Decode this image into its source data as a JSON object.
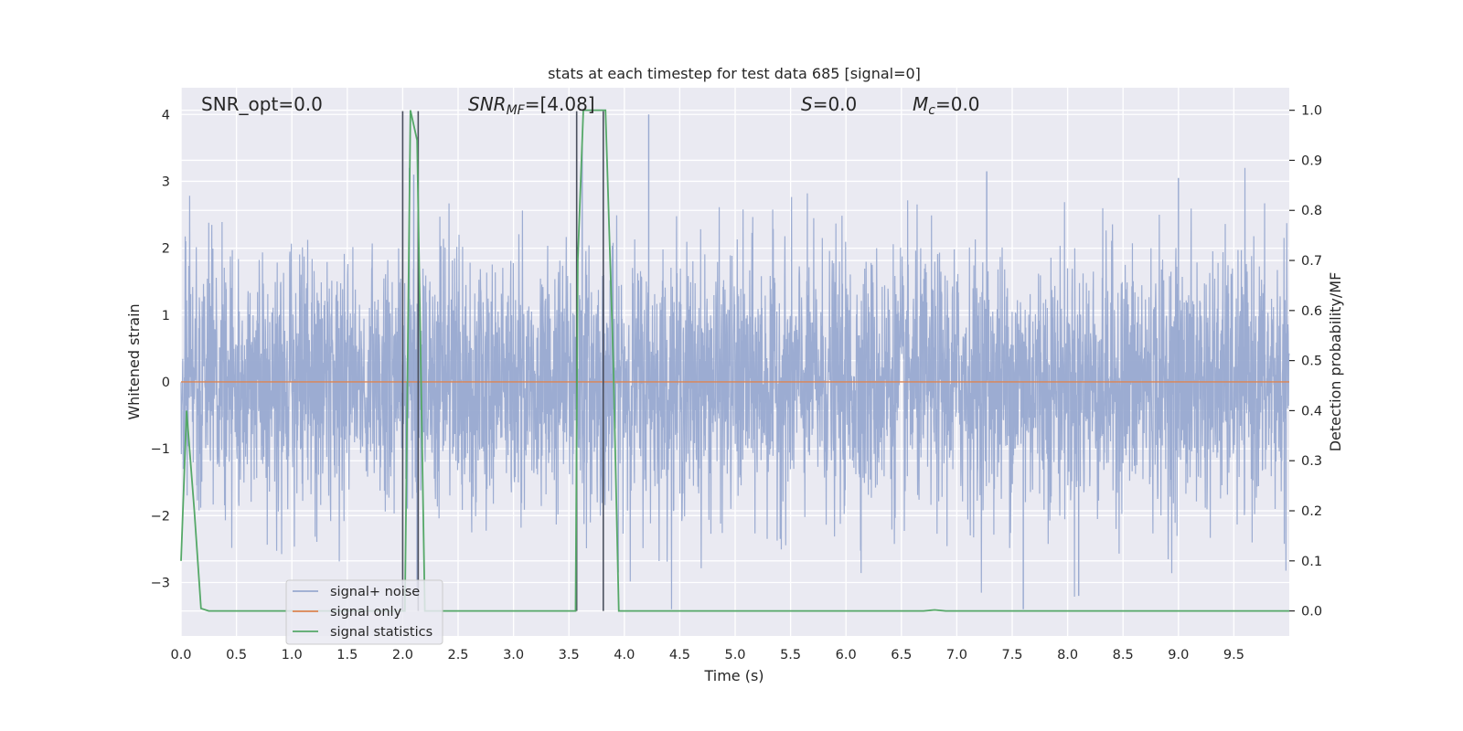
{
  "chart_data": {
    "type": "line",
    "title": "stats at each timestep for test data 685 [signal=0]",
    "xlabel": "Time (s)",
    "ylabel": "Whitened strain",
    "ylabel_right": "Detection probability/MF",
    "xlim": [
      0.0,
      10.0
    ],
    "ylim": [
      -3.8,
      4.4
    ],
    "ylim_right": [
      -0.05,
      1.045
    ],
    "x_ticks": [
      "0.0",
      "0.5",
      "1.0",
      "1.5",
      "2.0",
      "2.5",
      "3.0",
      "3.5",
      "4.0",
      "4.5",
      "5.0",
      "5.5",
      "6.0",
      "6.5",
      "7.0",
      "7.5",
      "8.0",
      "8.5",
      "9.0",
      "9.5"
    ],
    "y_ticks": [
      "4",
      "3",
      "2",
      "1",
      "0",
      "−1",
      "−2",
      "−3"
    ],
    "y_right_ticks": [
      "1.0",
      "0.9",
      "0.8",
      "0.7",
      "0.6",
      "0.5",
      "0.4",
      "0.3",
      "0.2",
      "0.1",
      "0.0"
    ],
    "grid": true,
    "legend_position": "lower-left",
    "annotations": {
      "snr_opt": "SNR_opt=0.0",
      "snr_mf_main": "SNR",
      "snr_mf_sub": "MF",
      "snr_mf_value": "=[4.08]",
      "s_main": "S",
      "s_value": "=0.0",
      "mc_main": "M",
      "mc_sub": "c",
      "mc_value": "=0.0"
    },
    "series": [
      {
        "name": "signal+ noise",
        "color": "#98a9d0",
        "description_values": {
          "typical_range": [
            -2.0,
            2.2
          ],
          "max": 4.0,
          "min": -3.4
        }
      },
      {
        "name": "signal only",
        "color": "#dd8452",
        "constant_value": 0.0
      },
      {
        "name": "signal statistics",
        "color": "#55a868",
        "axis": "right",
        "x": [
          0.0,
          0.05,
          0.12,
          0.18,
          0.25,
          0.3,
          1.0,
          1.98,
          2.02,
          2.07,
          2.13,
          2.2,
          2.5,
          3.0,
          3.56,
          3.58,
          3.63,
          3.78,
          3.83,
          3.9,
          3.95,
          4.5,
          6.7,
          6.8,
          6.9,
          9.0,
          10.0
        ],
        "values": [
          0.1,
          0.4,
          0.2,
          0.005,
          0.0,
          0.0,
          0.0,
          0.0,
          0.0,
          1.0,
          0.94,
          0.0,
          0.0,
          0.0,
          0.0,
          0.7,
          1.0,
          1.0,
          1.0,
          0.5,
          0.0,
          0.0,
          0.0,
          0.002,
          0.0,
          0.0,
          0.0
        ]
      }
    ],
    "vertical_markers": [
      {
        "x": 2.0,
        "y_top": 4.05
      },
      {
        "x": 2.14,
        "y_top": 4.05
      },
      {
        "x": 3.57,
        "y_top": 4.05
      },
      {
        "x": 3.81,
        "y_top": 4.05
      }
    ],
    "colors": {
      "plot_background": "#eaeaf2",
      "grid": "#ffffff",
      "vertical_marker": "#4a4f5e"
    }
  }
}
